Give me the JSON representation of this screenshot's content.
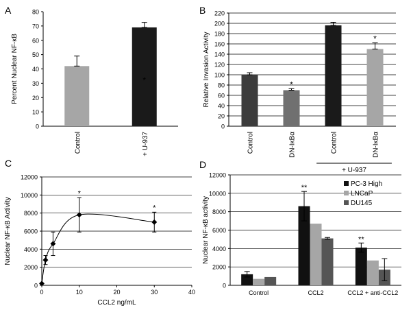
{
  "panels": {
    "A": {
      "letter": "A"
    },
    "B": {
      "letter": "B"
    },
    "C": {
      "letter": "C"
    },
    "D": {
      "letter": "D"
    }
  },
  "chart_data": [
    {
      "panel": "A",
      "type": "bar",
      "ylabel": "Percent Nuclear NF-κB",
      "categories": [
        "Control",
        "+ U-937"
      ],
      "values": [
        42,
        69
      ],
      "errors": [
        7,
        3.5
      ],
      "colors": [
        "#a6a6a6",
        "#1a1a1a"
      ],
      "ylim": [
        0,
        80
      ],
      "yticks": [
        0,
        10,
        20,
        30,
        40,
        50,
        60,
        70,
        80
      ],
      "annotations": [
        {
          "category": "+ U-937",
          "text": "*",
          "value": 33
        }
      ],
      "gridlines": false
    },
    {
      "panel": "B",
      "type": "bar",
      "ylabel": "Relative Invasion Activity",
      "categories": [
        "Control",
        "DN-IκBα",
        "Control",
        "DN-IκBα"
      ],
      "values": [
        100,
        70,
        196,
        150
      ],
      "errors": [
        4,
        3,
        6,
        12
      ],
      "colors": [
        "#3c3c3c",
        "#707070",
        "#1a1a1a",
        "#a6a6a6"
      ],
      "significance": [
        "",
        "*",
        "",
        "*"
      ],
      "ylim": [
        0,
        220
      ],
      "yticks": [
        0,
        20,
        40,
        60,
        80,
        100,
        120,
        140,
        160,
        180,
        200,
        220
      ],
      "group_label": "+ U-937",
      "gridlines": true
    },
    {
      "panel": "C",
      "type": "scatter",
      "xlabel": "CCL2 ng/mL",
      "ylabel": "Nuclear NF-κB Activity",
      "x": [
        0,
        1,
        3,
        10,
        30
      ],
      "y": [
        200,
        2800,
        4600,
        7800,
        7000
      ],
      "errors": [
        0,
        500,
        1300,
        1900,
        1100
      ],
      "significance": [
        "",
        "",
        "",
        "*",
        "*"
      ],
      "xlim": [
        0,
        40
      ],
      "xticks": [
        0,
        10,
        20,
        30,
        40
      ],
      "ylim": [
        0,
        12000
      ],
      "yticks": [
        0,
        2000,
        4000,
        6000,
        8000,
        10000,
        12000
      ],
      "gridlines": true,
      "smooth_line": true
    },
    {
      "panel": "D",
      "type": "bar",
      "ylabel": "Nuclear NF-κB activity",
      "categories": [
        "Control",
        "CCL2",
        "CCL2 + anti-CCL2"
      ],
      "series": [
        {
          "name": "PC-3 High",
          "color": "#111111",
          "values": [
            1200,
            8600,
            4100
          ],
          "errors": [
            300,
            1600,
            500
          ],
          "significance": [
            "",
            "**",
            "**"
          ]
        },
        {
          "name": "LNCaP",
          "color": "#a6a6a6",
          "values": [
            700,
            6700,
            2700
          ],
          "errors": [
            0,
            0,
            0
          ],
          "significance": [
            "",
            "",
            ""
          ]
        },
        {
          "name": "DU145",
          "color": "#555555",
          "values": [
            900,
            5100,
            1700
          ],
          "errors": [
            0,
            100,
            1200
          ],
          "significance": [
            "",
            "",
            ""
          ]
        }
      ],
      "ylim": [
        0,
        12000
      ],
      "yticks": [
        0,
        2000,
        4000,
        6000,
        8000,
        10000,
        12000
      ],
      "legend": "top-right",
      "gridlines": true
    }
  ]
}
